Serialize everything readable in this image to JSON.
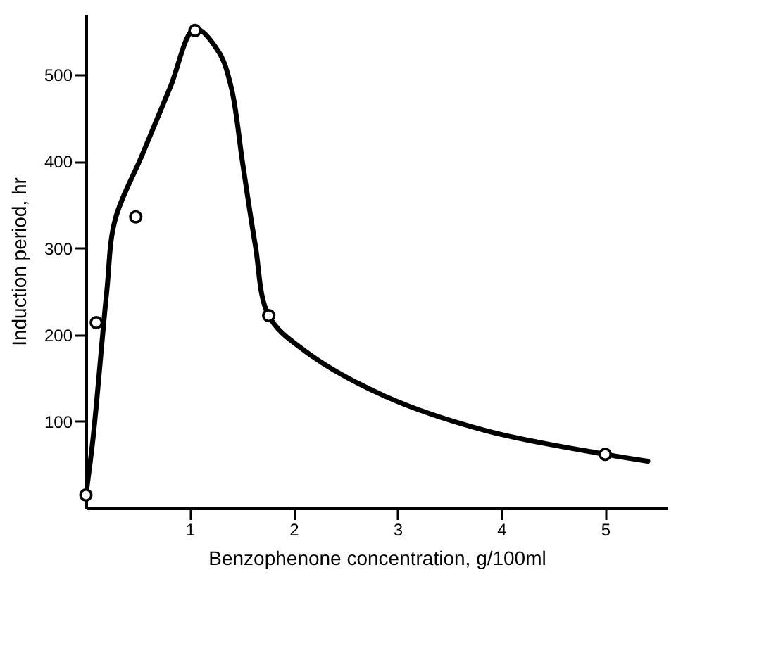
{
  "chart_data": {
    "type": "scatter",
    "xlabel": "Benzophenone concentration,  g/100ml",
    "ylabel": "Induction period,  hr",
    "xlim": [
      0,
      5.6
    ],
    "ylim": [
      0,
      570
    ],
    "xticks": [
      1,
      2,
      3,
      4,
      5
    ],
    "yticks": [
      100,
      200,
      300,
      400,
      500
    ],
    "grid": false,
    "series": [
      {
        "color": "#000000",
        "marker": "circle",
        "x": [
          0,
          0.1,
          0.48,
          1.05,
          1.76,
          5.0
        ],
        "values": [
          15,
          214,
          336,
          551,
          222,
          62
        ]
      },
      {
        "type": "line",
        "color": "#000000",
        "marker": "none",
        "line_style": "solid",
        "x": [
          0,
          0.07,
          0.2,
          0.28,
          0.54,
          0.81,
          1.05,
          1.28,
          1.4,
          1.51,
          1.63,
          1.76,
          2.1,
          2.88,
          3.86,
          5.0,
          5.41
        ],
        "values": [
          15,
          82,
          249,
          332,
          407,
          485,
          553,
          526,
          485,
          397,
          304,
          222,
          182,
          129,
          89,
          62,
          54
        ]
      }
    ]
  }
}
